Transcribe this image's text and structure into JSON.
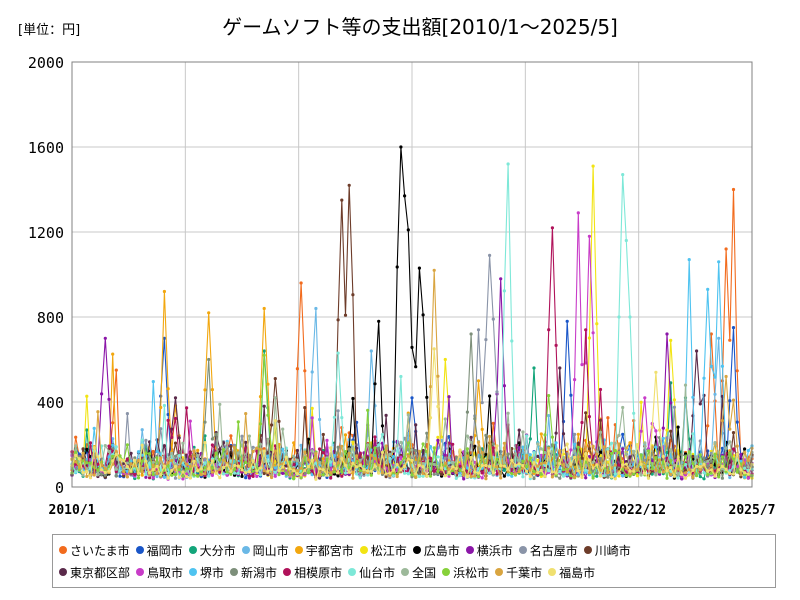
{
  "chart_data": {
    "type": "line",
    "title": "ゲームソフト等の支出額[2010/1～2025/5]",
    "unit_label": "[単位：円]",
    "xlabel": "",
    "ylabel": "",
    "ylim": [
      0,
      2000
    ],
    "yticks": [
      "0",
      "400",
      "800",
      "1200",
      "1600",
      "2000"
    ],
    "xticks": [
      "2010/1",
      "2012/8",
      "2015/3",
      "2017/10",
      "2020/5",
      "2022/12",
      "2025/7"
    ],
    "grid": true,
    "legend_position": "bottom",
    "series": [
      {
        "name": "さいたま市",
        "color": "#f26b1d",
        "base": 120,
        "peaks": [
          [
            0.94,
            720
          ],
          [
            0.96,
            1120
          ],
          [
            0.975,
            1400
          ],
          [
            0.335,
            960
          ],
          [
            0.62,
            300
          ]
        ]
      },
      {
        "name": "福岡市",
        "color": "#1a56c8",
        "base": 110,
        "peaks": [
          [
            0.135,
            700
          ],
          [
            0.73,
            780
          ],
          [
            0.975,
            750
          ],
          [
            0.5,
            420
          ]
        ]
      },
      {
        "name": "大分市",
        "color": "#13a57a",
        "base": 100,
        "peaks": [
          [
            0.28,
            640
          ],
          [
            0.68,
            560
          ],
          [
            0.9,
            420
          ]
        ]
      },
      {
        "name": "岡山市",
        "color": "#6ab8e6",
        "base": 115,
        "peaks": [
          [
            0.44,
            640
          ],
          [
            0.36,
            840
          ],
          [
            0.95,
            700
          ]
        ]
      },
      {
        "name": "宇都宮市",
        "color": "#f2a70f",
        "base": 120,
        "peaks": [
          [
            0.135,
            920
          ],
          [
            0.2,
            820
          ],
          [
            0.28,
            840
          ],
          [
            0.6,
            500
          ]
        ]
      },
      {
        "name": "松江市",
        "color": "#f2e413",
        "base": 110,
        "peaks": [
          [
            0.765,
            1510
          ],
          [
            0.55,
            600
          ],
          [
            0.88,
            690
          ]
        ]
      },
      {
        "name": "広島市",
        "color": "#000000",
        "base": 110,
        "peaks": [
          [
            0.45,
            780
          ],
          [
            0.485,
            1600
          ],
          [
            0.49,
            1370
          ],
          [
            0.495,
            1210
          ],
          [
            0.51,
            1030
          ],
          [
            0.515,
            810
          ]
        ]
      },
      {
        "name": "横浜市",
        "color": "#8b16a8",
        "base": 105,
        "peaks": [
          [
            0.05,
            700
          ],
          [
            0.63,
            980
          ],
          [
            0.875,
            720
          ]
        ]
      },
      {
        "name": "名古屋市",
        "color": "#8a94a8",
        "base": 115,
        "peaks": [
          [
            0.615,
            1090
          ],
          [
            0.6,
            740
          ],
          [
            0.62,
            790
          ]
        ]
      },
      {
        "name": "川崎市",
        "color": "#6d3c2a",
        "base": 110,
        "peaks": [
          [
            0.395,
            1350
          ],
          [
            0.41,
            1420
          ],
          [
            0.3,
            510
          ]
        ]
      },
      {
        "name": "東京都区部",
        "color": "#5a2a4a",
        "base": 120,
        "peaks": [
          [
            0.15,
            420
          ],
          [
            0.72,
            560
          ],
          [
            0.92,
            640
          ]
        ]
      },
      {
        "name": "鳥取市",
        "color": "#c83cc8",
        "base": 100,
        "peaks": [
          [
            0.745,
            1290
          ],
          [
            0.76,
            1180
          ],
          [
            0.84,
            420
          ]
        ]
      },
      {
        "name": "堺市",
        "color": "#4fc3f0",
        "base": 110,
        "peaks": [
          [
            0.905,
            1070
          ],
          [
            0.935,
            930
          ],
          [
            0.95,
            1060
          ]
        ]
      },
      {
        "name": "新潟市",
        "color": "#7d8f7a",
        "base": 105,
        "peaks": [
          [
            0.585,
            720
          ],
          [
            0.2,
            600
          ]
        ]
      },
      {
        "name": "相模原市",
        "color": "#b0125a",
        "base": 105,
        "peaks": [
          [
            0.705,
            1220
          ],
          [
            0.755,
            740
          ]
        ]
      },
      {
        "name": "仙台市",
        "color": "#7ee8d8",
        "base": 110,
        "peaks": [
          [
            0.64,
            1520
          ],
          [
            0.81,
            1470
          ],
          [
            0.815,
            1160
          ],
          [
            0.82,
            800
          ],
          [
            0.39,
            630
          ]
        ]
      },
      {
        "name": "全国",
        "color": "#9db99a",
        "base": 130,
        "peaks": [
          [
            0.55,
            320
          ]
        ]
      },
      {
        "name": "浜松市",
        "color": "#86d13a",
        "base": 100,
        "peaks": [
          [
            0.28,
            620
          ],
          [
            0.7,
            430
          ]
        ]
      },
      {
        "name": "千葉市",
        "color": "#d9a540",
        "base": 110,
        "peaks": [
          [
            0.53,
            1020
          ],
          [
            0.96,
            520
          ]
        ]
      },
      {
        "name": "福島市",
        "color": "#f0e070",
        "base": 100,
        "peaks": [
          [
            0.53,
            650
          ],
          [
            0.86,
            540
          ]
        ]
      }
    ]
  }
}
